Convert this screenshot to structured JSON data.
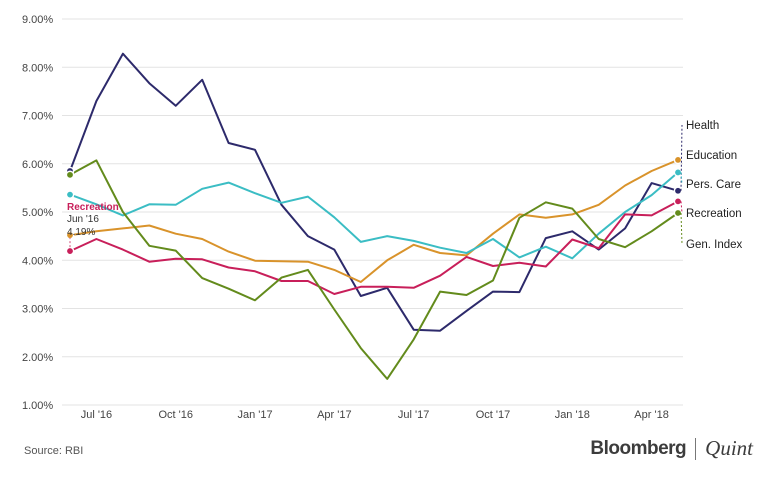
{
  "chart_data": {
    "type": "line",
    "title": "",
    "xlabel": "",
    "ylabel": "",
    "ylim": [
      1.0,
      9.0
    ],
    "y_ticks": [
      1,
      2,
      3,
      4,
      5,
      6,
      7,
      8,
      9
    ],
    "y_tick_labels": [
      "1.00%",
      "2.00%",
      "3.00%",
      "4.00%",
      "5.00%",
      "6.00%",
      "7.00%",
      "8.00%",
      "9.00%"
    ],
    "x_ticks": [
      {
        "index": 1,
        "label": "Jul '16"
      },
      {
        "index": 4,
        "label": "Oct '16"
      },
      {
        "index": 7,
        "label": "Jan '17"
      },
      {
        "index": 10,
        "label": "Apr '17"
      },
      {
        "index": 13,
        "label": "Jul '17"
      },
      {
        "index": 16,
        "label": "Oct '17"
      },
      {
        "index": 19,
        "label": "Jan '18"
      },
      {
        "index": 22,
        "label": "Apr '18"
      }
    ],
    "x_count": 24,
    "grid": true,
    "series": [
      {
        "name": "Health",
        "color": "#2d2a6b",
        "values": [
          5.85,
          7.3,
          8.28,
          7.67,
          7.2,
          7.74,
          6.43,
          6.29,
          5.15,
          4.5,
          4.22,
          3.26,
          3.43,
          2.56,
          2.54,
          2.95,
          3.35,
          3.34,
          4.46,
          4.6,
          4.22,
          4.66,
          5.6,
          5.44
        ]
      },
      {
        "name": "Education",
        "color": "#d9932b",
        "values": [
          4.52,
          4.6,
          4.66,
          4.72,
          4.55,
          4.44,
          4.18,
          3.99,
          3.98,
          3.97,
          3.8,
          3.55,
          4.0,
          4.32,
          4.15,
          4.1,
          4.55,
          4.95,
          4.88,
          4.95,
          5.15,
          5.55,
          5.85,
          6.08
        ]
      },
      {
        "name": "Pers. Care",
        "color": "#3bbdc4",
        "values": [
          5.36,
          5.16,
          4.93,
          5.16,
          5.15,
          5.48,
          5.61,
          5.39,
          5.19,
          5.32,
          4.89,
          4.38,
          4.5,
          4.4,
          4.26,
          4.15,
          4.44,
          4.06,
          4.28,
          4.04,
          4.55,
          5.0,
          5.35,
          5.82
        ]
      },
      {
        "name": "Recreation",
        "color": "#c81f5a",
        "values": [
          4.19,
          4.44,
          4.22,
          3.97,
          4.03,
          4.02,
          3.85,
          3.77,
          3.57,
          3.57,
          3.3,
          3.45,
          3.45,
          3.43,
          3.68,
          4.07,
          3.88,
          3.95,
          3.87,
          4.43,
          4.25,
          4.95,
          4.93,
          5.22
        ]
      },
      {
        "name": "Gen. Index",
        "color": "#638b1c",
        "values": [
          5.77,
          6.07,
          5.0,
          4.3,
          4.2,
          3.63,
          3.41,
          3.17,
          3.64,
          3.8,
          2.98,
          2.18,
          1.54,
          2.36,
          3.35,
          3.28,
          3.58,
          4.88,
          5.2,
          5.07,
          4.44,
          4.27,
          4.6,
          4.98
        ]
      }
    ],
    "legend": [
      {
        "label": "Health",
        "series": "Health"
      },
      {
        "label": "Education",
        "series": "Education"
      },
      {
        "label": "Pers. Care",
        "series": "Pers. Care"
      },
      {
        "label": "Recreation",
        "series": "Recreation"
      },
      {
        "label": "Gen. Index",
        "series": "Gen. Index"
      }
    ],
    "annotation": {
      "series": "Recreation",
      "title": "Recreation",
      "date": "Jun '16",
      "value": "4.19%"
    }
  },
  "footer": {
    "source": "Source: RBI",
    "brand_main": "Bloomberg",
    "brand_sub": "Quint"
  }
}
